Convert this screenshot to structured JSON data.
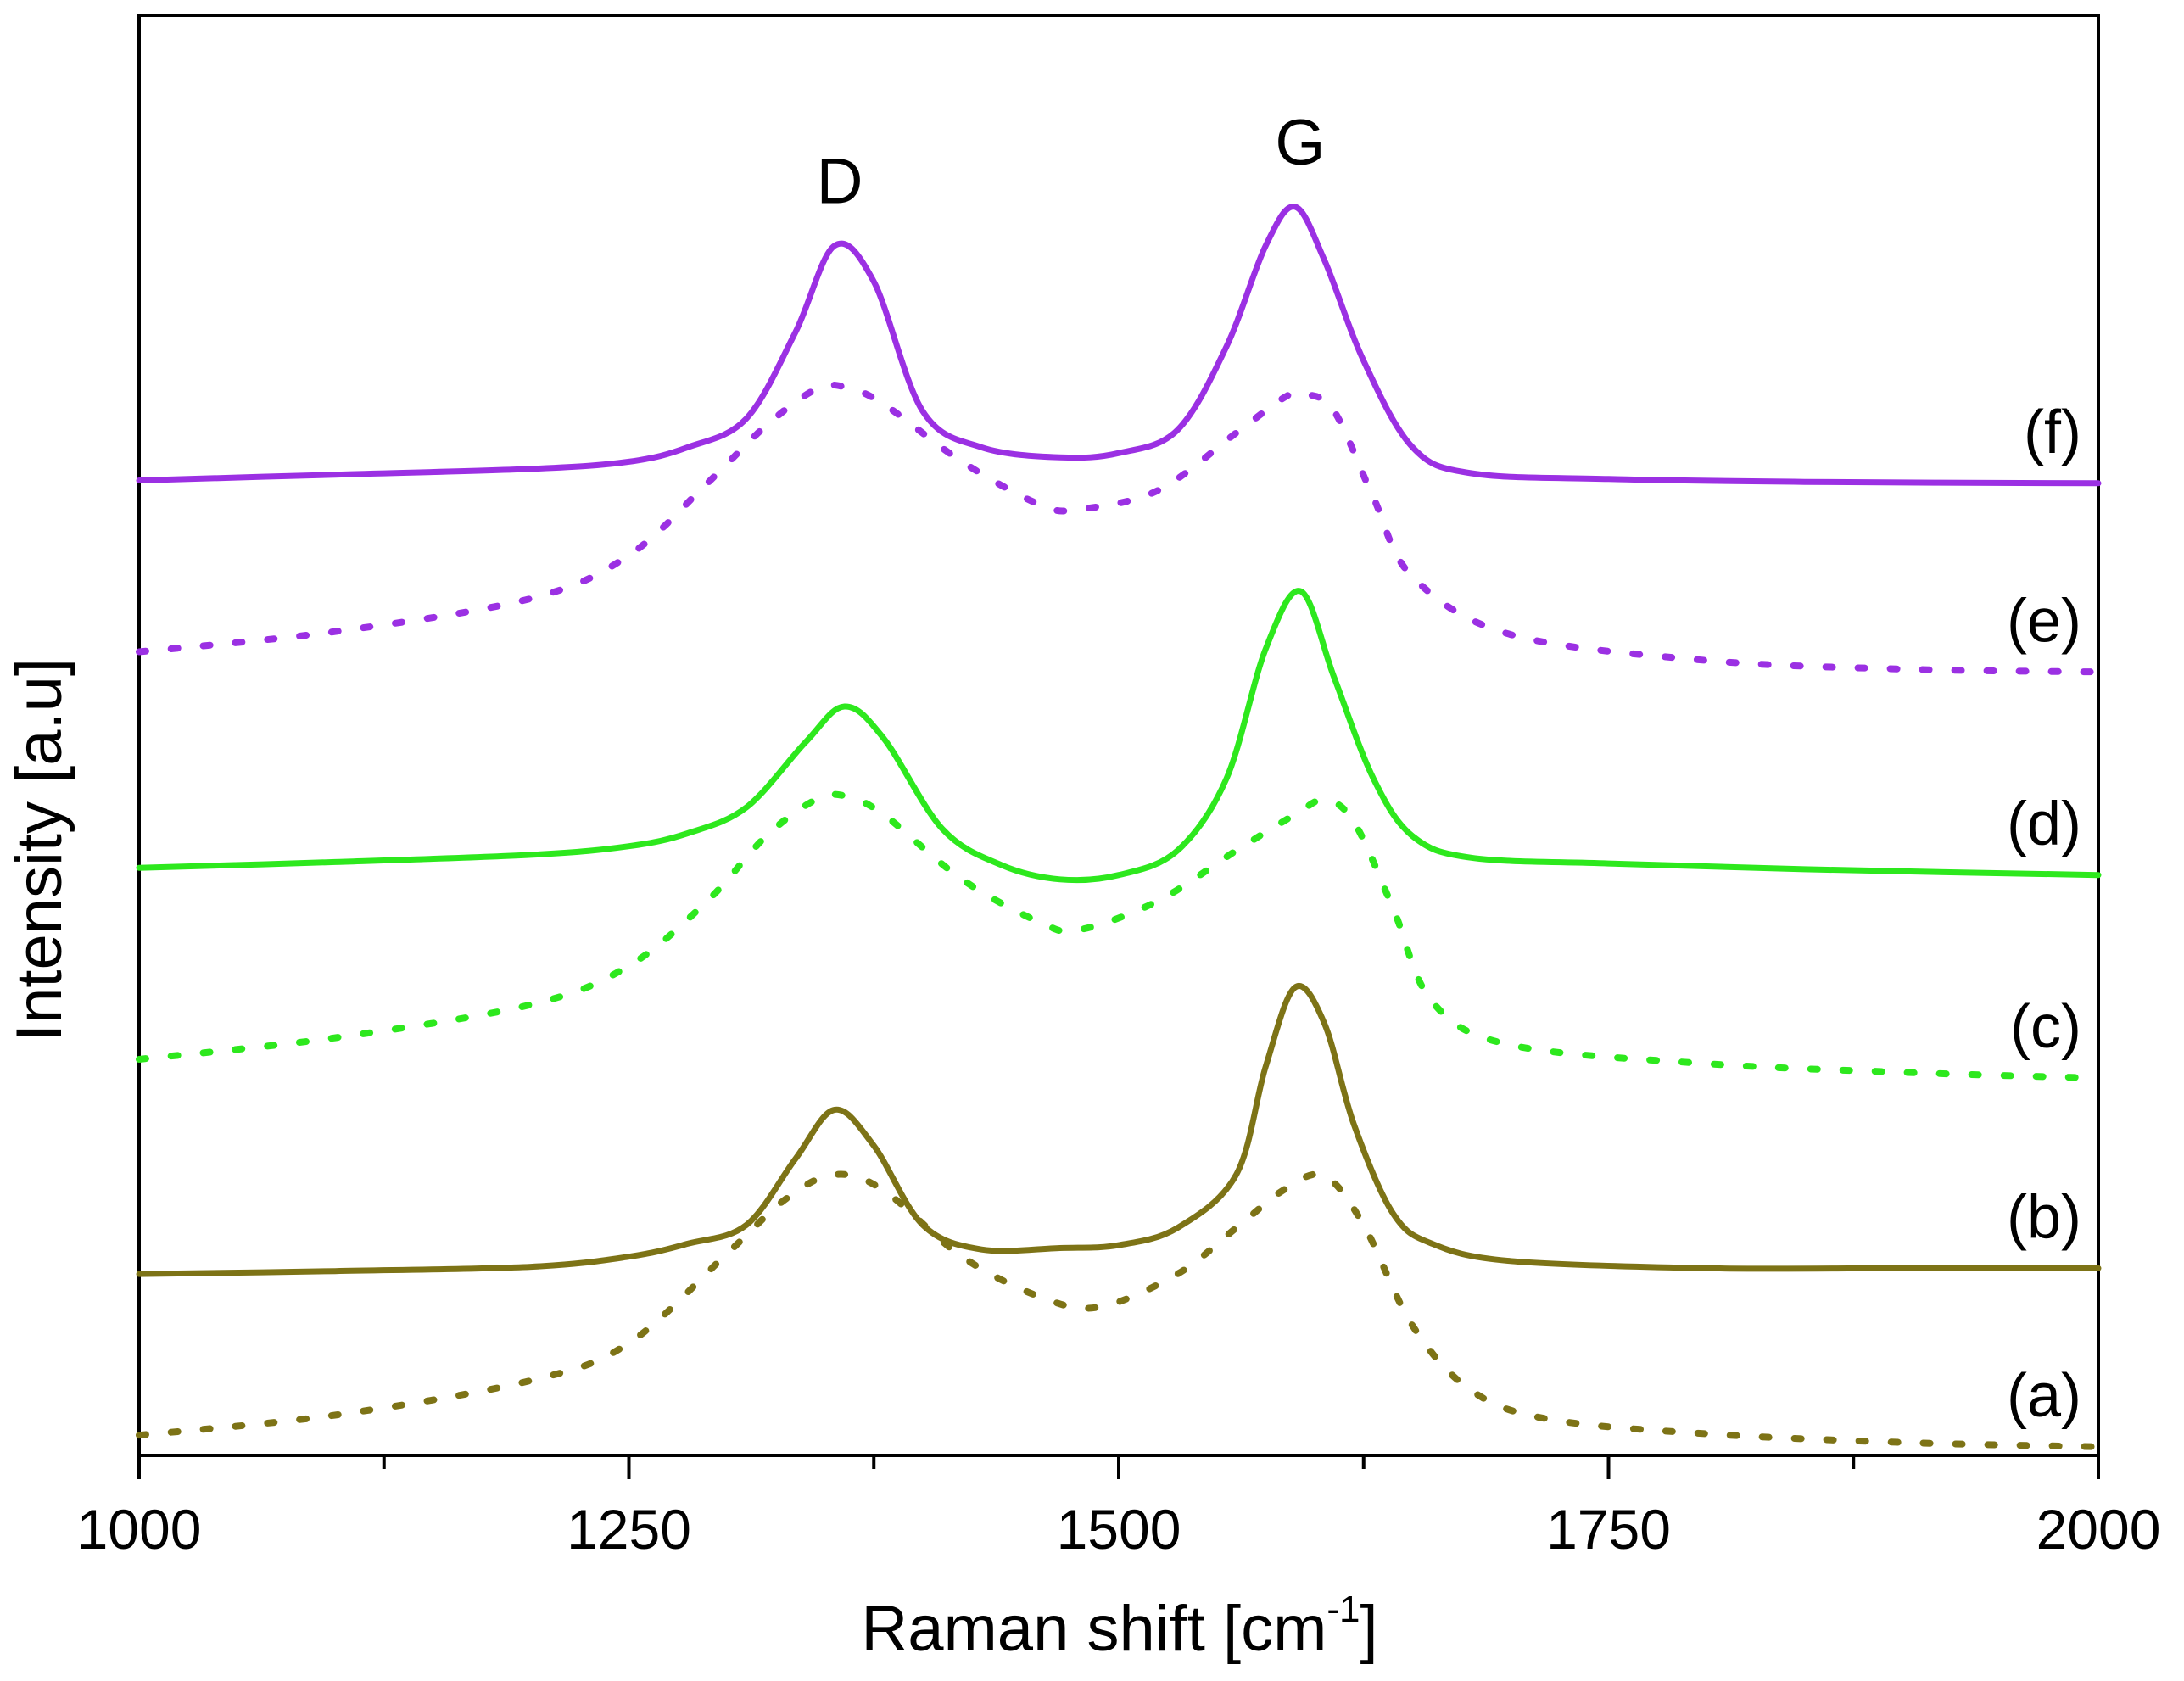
{
  "chart_data": {
    "type": "line",
    "title": "",
    "xlabel": "Raman shift [cm",
    "xlabel_superscript": "-1",
    "xlabel_suffix": "]",
    "ylabel": "Intensity [a.u]",
    "xlim": [
      1000,
      2000
    ],
    "ylim": [
      0,
      1
    ],
    "x_ticks": [
      1000,
      1250,
      1500,
      1750,
      2000
    ],
    "x_tick_labels": [
      "1000",
      "1250",
      "1500",
      "1750",
      "2000"
    ],
    "x_minor_ticks": [
      1125,
      1375,
      1625,
      1875
    ],
    "y_ticks_visible": false,
    "grid": false,
    "annotations": [
      {
        "text": "D",
        "x": 1355
      },
      {
        "text": "G",
        "x": 1590
      }
    ],
    "series": [
      {
        "name": "(a)",
        "label": "(a)",
        "style": "dotted",
        "color": "#7d7316",
        "x": [
          1000,
          1100,
          1200,
          1250,
          1300,
          1330,
          1355,
          1380,
          1420,
          1460,
          1490,
          1530,
          1560,
          1585,
          1605,
          1625,
          1650,
          1680,
          1720,
          1800,
          1900,
          2000
        ],
        "y": [
          0.014,
          0.028,
          0.052,
          0.078,
          0.14,
          0.178,
          0.195,
          0.184,
          0.138,
          0.11,
          0.103,
          0.126,
          0.158,
          0.185,
          0.194,
          0.16,
          0.09,
          0.045,
          0.025,
          0.015,
          0.009,
          0.006
        ]
      },
      {
        "name": "(b)",
        "label": "(b)",
        "style": "solid",
        "color": "#7d7316",
        "x": [
          1000,
          1100,
          1200,
          1250,
          1280,
          1310,
          1335,
          1355,
          1375,
          1400,
          1430,
          1470,
          1500,
          1530,
          1560,
          1575,
          1590,
          1605,
          1620,
          1640,
          1660,
          1700,
          1800,
          1900,
          2000
        ],
        "y": [
          0.126,
          0.128,
          0.131,
          0.138,
          0.147,
          0.16,
          0.206,
          0.24,
          0.215,
          0.16,
          0.143,
          0.144,
          0.146,
          0.158,
          0.195,
          0.27,
          0.325,
          0.3,
          0.23,
          0.168,
          0.147,
          0.135,
          0.13,
          0.13,
          0.13
        ]
      },
      {
        "name": "(c)",
        "label": "(c)",
        "style": "dotted",
        "color": "#2de81d",
        "x": [
          1000,
          1100,
          1200,
          1250,
          1290,
          1320,
          1345,
          1360,
          1380,
          1420,
          1460,
          1480,
          1520,
          1560,
          1590,
          1605,
          1620,
          1640,
          1660,
          1700,
          1800,
          1900,
          2000
        ],
        "y": [
          0.275,
          0.29,
          0.313,
          0.34,
          0.385,
          0.43,
          0.455,
          0.458,
          0.445,
          0.4,
          0.37,
          0.365,
          0.385,
          0.42,
          0.445,
          0.455,
          0.44,
          0.38,
          0.315,
          0.285,
          0.272,
          0.266,
          0.262
        ]
      },
      {
        "name": "(d)",
        "label": "(d)",
        "style": "solid",
        "color": "#2de81d",
        "x": [
          1000,
          1100,
          1200,
          1250,
          1280,
          1310,
          1340,
          1360,
          1380,
          1410,
          1440,
          1470,
          1500,
          1530,
          1555,
          1575,
          1593,
          1610,
          1630,
          1650,
          1680,
          1750,
          1850,
          2000
        ],
        "y": [
          0.408,
          0.412,
          0.417,
          0.423,
          0.432,
          0.45,
          0.495,
          0.52,
          0.498,
          0.435,
          0.41,
          0.4,
          0.403,
          0.42,
          0.47,
          0.56,
          0.6,
          0.54,
          0.47,
          0.43,
          0.415,
          0.411,
          0.407,
          0.403
        ]
      },
      {
        "name": "(e)",
        "label": "(e)",
        "style": "dotted",
        "color": "#9b30e3",
        "x": [
          1000,
          1100,
          1200,
          1250,
          1290,
          1320,
          1345,
          1360,
          1380,
          1420,
          1460,
          1480,
          1520,
          1560,
          1585,
          1595,
          1610,
          1630,
          1650,
          1700,
          1800,
          1900,
          2000
        ],
        "y": [
          0.558,
          0.572,
          0.595,
          0.625,
          0.675,
          0.715,
          0.74,
          0.742,
          0.73,
          0.69,
          0.66,
          0.657,
          0.67,
          0.71,
          0.735,
          0.737,
          0.725,
          0.665,
          0.61,
          0.57,
          0.552,
          0.546,
          0.544
        ]
      },
      {
        "name": "(f)",
        "label": "(f)",
        "style": "solid",
        "color": "#9b30e3",
        "x": [
          1000,
          1100,
          1200,
          1250,
          1280,
          1310,
          1335,
          1355,
          1375,
          1400,
          1430,
          1470,
          1500,
          1530,
          1555,
          1575,
          1590,
          1605,
          1625,
          1650,
          1680,
          1750,
          1850,
          2000
        ],
        "y": [
          0.677,
          0.681,
          0.685,
          0.69,
          0.7,
          0.72,
          0.78,
          0.84,
          0.815,
          0.725,
          0.7,
          0.693,
          0.696,
          0.712,
          0.77,
          0.84,
          0.867,
          0.83,
          0.76,
          0.7,
          0.682,
          0.678,
          0.676,
          0.675
        ]
      }
    ]
  }
}
